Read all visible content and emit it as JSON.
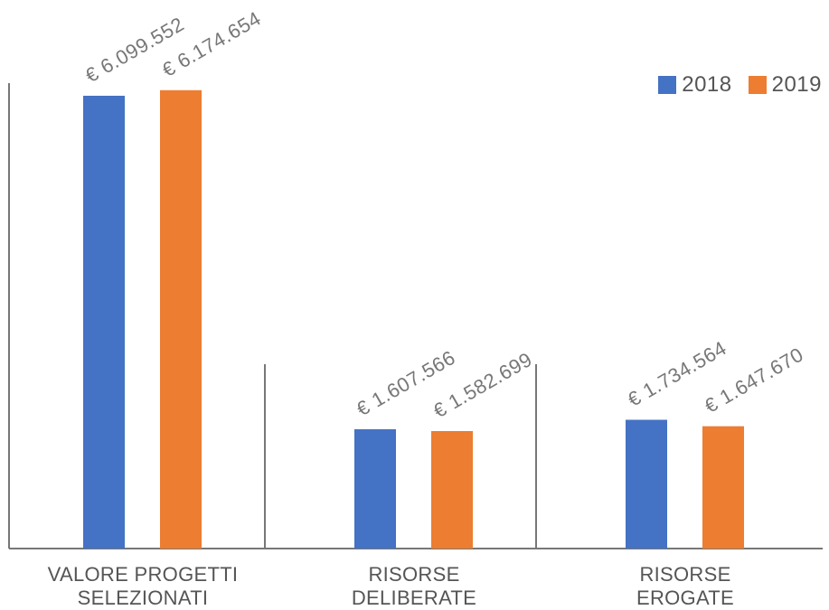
{
  "chart_data": {
    "type": "bar",
    "categories": [
      [
        "VALORE PROGETTI",
        "SELEZIONATI"
      ],
      [
        "RISORSE",
        "DELIBERATE"
      ],
      [
        "RISORSE",
        "EROGATE"
      ]
    ],
    "series": [
      {
        "name": "2018",
        "color": "#4472C4",
        "values": [
          6099552,
          1607566,
          1734564
        ],
        "labels": [
          "€ 6.099.552",
          "€ 1.607.566",
          "€ 1.734.564"
        ]
      },
      {
        "name": "2019",
        "color": "#ED7D31",
        "values": [
          6174654,
          1582699,
          1647670
        ],
        "labels": [
          "€ 6.174.654",
          "€ 1.582.699",
          "€ 1.647.670"
        ]
      }
    ],
    "ylim": [
      0,
      7000000
    ],
    "legend": "top-right",
    "grid": false,
    "title": "",
    "xlabel": "",
    "ylabel": ""
  }
}
